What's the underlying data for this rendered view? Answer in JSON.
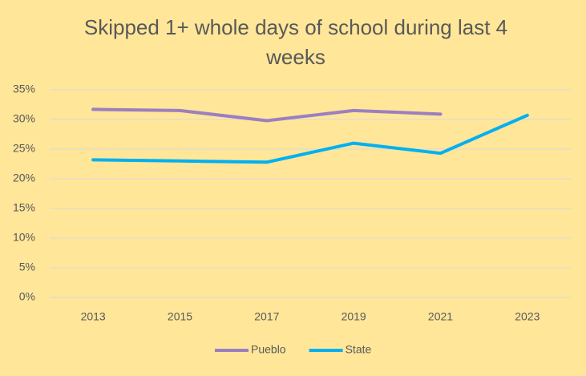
{
  "chart_data": {
    "type": "line",
    "title": "Skipped 1+ whole days of school during last 4 weeks",
    "categories": [
      "2013",
      "2015",
      "2017",
      "2019",
      "2021",
      "2023"
    ],
    "series": [
      {
        "name": "Pueblo",
        "color": "#9b7fc0",
        "values": [
          31.7,
          31.5,
          29.8,
          31.5,
          30.9,
          null
        ]
      },
      {
        "name": "State",
        "color": "#00b0f0",
        "values": [
          23.2,
          23.0,
          22.8,
          26.0,
          24.3,
          30.7
        ]
      }
    ],
    "ylim": [
      0,
      35
    ],
    "yticks": [
      {
        "value": 0,
        "label": "0%"
      },
      {
        "value": 5,
        "label": "5%"
      },
      {
        "value": 10,
        "label": "10%"
      },
      {
        "value": 15,
        "label": "15%"
      },
      {
        "value": 20,
        "label": "20%"
      },
      {
        "value": 25,
        "label": "25%"
      },
      {
        "value": 30,
        "label": "30%"
      },
      {
        "value": 35,
        "label": "35%"
      }
    ],
    "grid": true,
    "legend": "bottom"
  }
}
